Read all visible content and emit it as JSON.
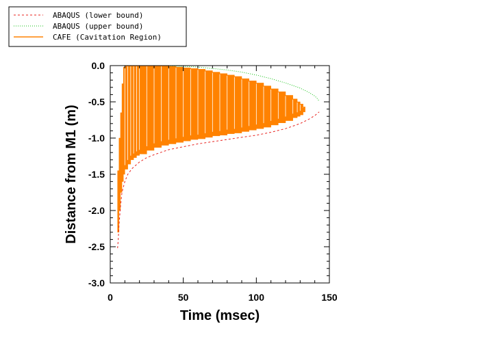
{
  "chart_data": {
    "type": "line",
    "xlabel": "Time (msec)",
    "ylabel": "Distance from M1 (m)",
    "xlim": [
      0,
      150
    ],
    "ylim": [
      -3.0,
      0.0
    ],
    "x_ticks": [
      0,
      50,
      100,
      150
    ],
    "x_tick_labels": [
      "0",
      "50",
      "100",
      "150"
    ],
    "y_ticks": [
      0.0,
      -0.5,
      -1.0,
      -1.5,
      -2.0,
      -2.5,
      -3.0
    ],
    "y_tick_labels": [
      "0.0",
      "-0.5",
      "-1.0",
      "-1.5",
      "-2.0",
      "-2.5",
      "-3.0"
    ],
    "grid": false,
    "legend_position": "top-left",
    "series": [
      {
        "name": "ABAQUS (lower bound)",
        "style": "dashed",
        "color": "#e8201c",
        "x": [
          5,
          5.5,
          6,
          7,
          8,
          10,
          12,
          15,
          20,
          25,
          30,
          40,
          50,
          60,
          70,
          80,
          90,
          100,
          110,
          120,
          130,
          136,
          140,
          143
        ],
        "y": [
          -2.52,
          -2.4,
          -2.2,
          -1.95,
          -1.75,
          -1.6,
          -1.5,
          -1.42,
          -1.33,
          -1.27,
          -1.23,
          -1.16,
          -1.12,
          -1.08,
          -1.05,
          -1.02,
          -0.99,
          -0.96,
          -0.92,
          -0.87,
          -0.8,
          -0.74,
          -0.69,
          -0.64
        ]
      },
      {
        "name": "ABAQUS (upper bound)",
        "style": "dotted",
        "color": "#10c010",
        "x": [
          37,
          50,
          60,
          70,
          80,
          90,
          100,
          110,
          120,
          130,
          136,
          140,
          142,
          143
        ],
        "y": [
          0.0,
          -0.01,
          -0.02,
          -0.04,
          -0.06,
          -0.09,
          -0.13,
          -0.18,
          -0.24,
          -0.31,
          -0.37,
          -0.42,
          -0.46,
          -0.49
        ]
      },
      {
        "name": "CAFE (Cavitation Region)",
        "style": "filled-bars",
        "color": "#ff8200",
        "x": [
          5,
          6,
          7,
          8,
          9,
          10,
          12,
          14,
          16,
          18,
          20,
          25,
          30,
          35,
          40,
          45,
          50,
          55,
          60,
          65,
          70,
          75,
          80,
          85,
          90,
          95,
          100,
          105,
          110,
          115,
          120,
          125,
          128,
          130,
          132
        ],
        "y_top": [
          -1.45,
          -1.0,
          -0.65,
          -0.25,
          -0.02,
          0.0,
          0.0,
          0.0,
          0.0,
          0.0,
          0.0,
          0.0,
          0.0,
          0.0,
          -0.01,
          -0.02,
          -0.03,
          -0.04,
          -0.05,
          -0.07,
          -0.09,
          -0.11,
          -0.13,
          -0.15,
          -0.18,
          -0.21,
          -0.24,
          -0.28,
          -0.32,
          -0.36,
          -0.41,
          -0.46,
          -0.5,
          -0.53,
          -0.57
        ],
        "y_bottom": [
          -2.3,
          -2.0,
          -1.75,
          -1.6,
          -1.5,
          -1.43,
          -1.36,
          -1.3,
          -1.27,
          -1.24,
          -1.22,
          -1.17,
          -1.13,
          -1.1,
          -1.08,
          -1.06,
          -1.04,
          -1.02,
          -1.01,
          -0.99,
          -0.97,
          -0.96,
          -0.94,
          -0.93,
          -0.91,
          -0.89,
          -0.87,
          -0.85,
          -0.82,
          -0.79,
          -0.76,
          -0.72,
          -0.7,
          -0.68,
          -0.64
        ]
      }
    ]
  }
}
